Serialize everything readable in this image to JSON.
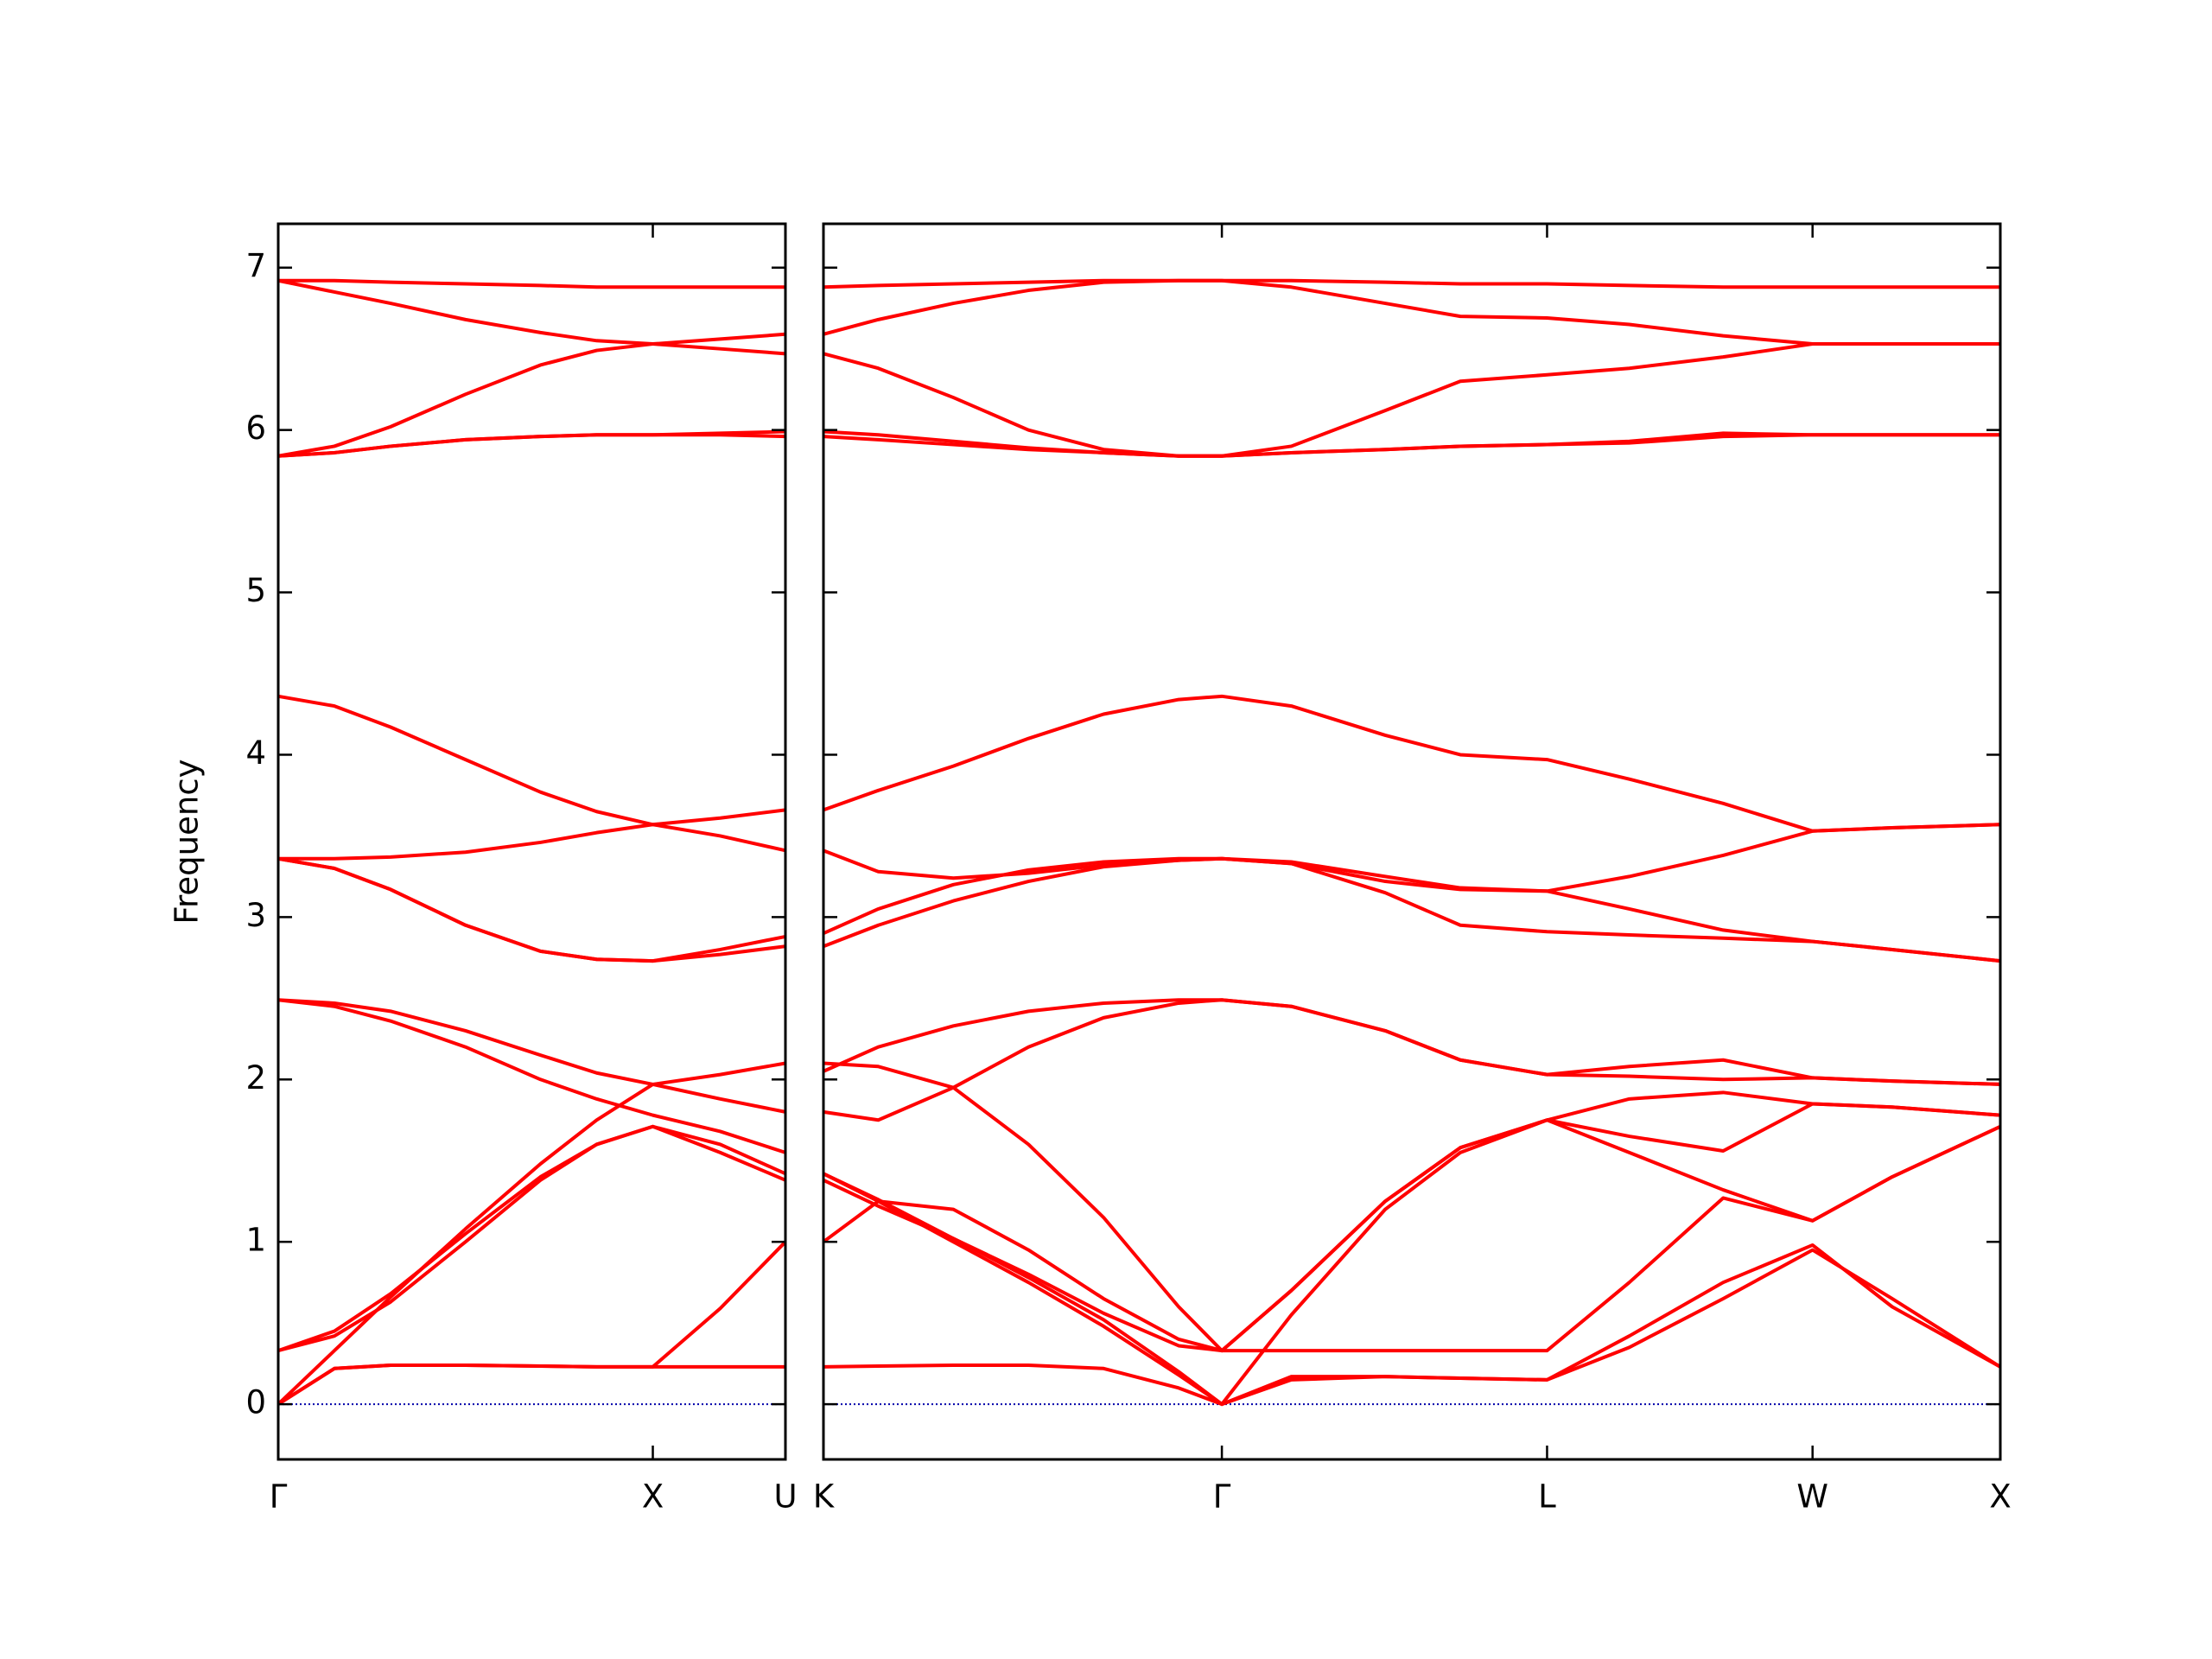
{
  "chart_data": [
    {
      "type": "line",
      "ylabel": "Frequency",
      "color": "#ff0000",
      "show_ytick_labels": true,
      "reference_line": {
        "y": 0,
        "color": "#0000aa",
        "style": "dotted"
      },
      "xlim": [
        0,
        1.354
      ],
      "ylim": [
        -0.34,
        7.27
      ],
      "xticks": [
        {
          "value": 0,
          "label": "Γ"
        },
        {
          "value": 1,
          "label": "X"
        },
        {
          "value": 1.354,
          "label": "U"
        }
      ],
      "yticks": [
        0,
        1,
        2,
        3,
        4,
        5,
        6,
        7
      ],
      "x": [
        0,
        0.15,
        0.3,
        0.5,
        0.7,
        0.85,
        1.0,
        1.18,
        1.354
      ],
      "series": [
        {
          "values": [
            0,
            0.22,
            0.24,
            0.24,
            0.235,
            0.23,
            0.23,
            0.23,
            0.23
          ]
        },
        {
          "values": [
            0,
            0.22,
            0.24,
            0.24,
            0.235,
            0.23,
            0.23,
            0.59,
            1.0
          ]
        },
        {
          "values": [
            0,
            0.33,
            0.66,
            1.08,
            1.48,
            1.75,
            1.97,
            2.03,
            2.1
          ]
        },
        {
          "values": [
            0.33,
            0.45,
            0.68,
            1.05,
            1.4,
            1.6,
            1.71,
            1.55,
            1.38
          ]
        },
        {
          "values": [
            0.33,
            0.42,
            0.63,
            1.0,
            1.38,
            1.6,
            1.71,
            1.6,
            1.42
          ]
        },
        {
          "values": [
            2.49,
            2.47,
            2.42,
            2.3,
            2.15,
            2.04,
            1.97,
            1.88,
            1.8
          ]
        },
        {
          "values": [
            2.49,
            2.45,
            2.36,
            2.2,
            2.0,
            1.88,
            1.78,
            1.68,
            1.55
          ]
        },
        {
          "values": [
            3.36,
            3.36,
            3.37,
            3.4,
            3.46,
            3.52,
            3.57,
            3.61,
            3.66
          ]
        },
        {
          "values": [
            3.36,
            3.3,
            3.17,
            2.95,
            2.79,
            2.74,
            2.73,
            2.77,
            2.82
          ]
        },
        {
          "values": [
            3.36,
            3.3,
            3.17,
            2.95,
            2.79,
            2.74,
            2.73,
            2.8,
            2.88
          ]
        },
        {
          "values": [
            4.36,
            4.3,
            4.17,
            3.97,
            3.77,
            3.65,
            3.57,
            3.5,
            3.41
          ]
        },
        {
          "values": [
            5.84,
            5.86,
            5.9,
            5.94,
            5.96,
            5.97,
            5.97,
            5.97,
            5.96
          ]
        },
        {
          "values": [
            5.84,
            5.86,
            5.9,
            5.94,
            5.96,
            5.97,
            5.97,
            5.98,
            5.99
          ]
        },
        {
          "values": [
            5.84,
            5.9,
            6.02,
            6.22,
            6.4,
            6.49,
            6.53,
            6.56,
            6.59
          ]
        },
        {
          "values": [
            6.92,
            6.85,
            6.78,
            6.68,
            6.6,
            6.55,
            6.53,
            6.5,
            6.47
          ]
        },
        {
          "values": [
            6.92,
            6.92,
            6.91,
            6.9,
            6.89,
            6.88,
            6.88,
            6.88,
            6.88
          ]
        }
      ]
    },
    {
      "type": "line",
      "color": "#ff0000",
      "show_ytick_labels": false,
      "reference_line": {
        "y": 0,
        "color": "#0000aa",
        "style": "dotted"
      },
      "xlim": [
        1.354,
        4.488
      ],
      "ylim": [
        -0.34,
        7.27
      ],
      "xticks": [
        {
          "value": 1.354,
          "label": "K"
        },
        {
          "value": 2.415,
          "label": "Γ"
        },
        {
          "value": 3.281,
          "label": "L"
        },
        {
          "value": 3.988,
          "label": "W"
        },
        {
          "value": 4.488,
          "label": "X"
        }
      ],
      "yticks": [
        0,
        1,
        2,
        3,
        4,
        5,
        6,
        7
      ],
      "x": [
        1.354,
        1.5,
        1.7,
        1.9,
        2.1,
        2.3,
        2.415,
        2.6,
        2.85,
        3.05,
        3.281,
        3.5,
        3.75,
        3.988,
        4.2,
        4.488
      ],
      "series": [
        {
          "values": [
            0.23,
            0.235,
            0.24,
            0.24,
            0.22,
            0.1,
            0,
            0.15,
            0.17,
            0.16,
            0.15,
            0.35,
            0.65,
            0.95,
            0.65,
            0.23
          ]
        },
        {
          "values": [
            1.42,
            1.26,
            1.02,
            0.78,
            0.52,
            0.2,
            0,
            0.17,
            0.17,
            0.16,
            0.15,
            0.42,
            0.75,
            0.98,
            0.6,
            0.23
          ]
        },
        {
          "values": [
            1.42,
            1.25,
            1.0,
            0.75,
            0.48,
            0.18,
            0,
            0.55,
            1.2,
            1.55,
            1.75,
            1.55,
            1.32,
            1.13,
            1.4,
            1.71
          ]
        },
        {
          "values": [
            1.0,
            1.25,
            1.2,
            0.95,
            0.65,
            0.4,
            0.33,
            0.33,
            0.33,
            0.33,
            0.33,
            0.75,
            1.27,
            1.13,
            1.4,
            1.71
          ]
        },
        {
          "values": [
            1.38,
            1.22,
            1.02,
            0.8,
            0.56,
            0.36,
            0.33,
            0.7,
            1.25,
            1.58,
            1.75,
            1.65,
            1.56,
            1.85,
            1.83,
            1.78
          ]
        },
        {
          "values": [
            2.1,
            2.08,
            1.95,
            1.6,
            1.15,
            0.6,
            0.33,
            0.7,
            1.25,
            1.58,
            1.75,
            1.88,
            1.92,
            1.85,
            1.83,
            1.78
          ]
        },
        {
          "values": [
            1.8,
            1.75,
            1.95,
            2.2,
            2.38,
            2.47,
            2.49,
            2.45,
            2.3,
            2.12,
            2.03,
            2.08,
            2.12,
            2.01,
            1.99,
            1.97
          ]
        },
        {
          "values": [
            2.05,
            2.2,
            2.33,
            2.42,
            2.47,
            2.49,
            2.49,
            2.45,
            2.3,
            2.12,
            2.03,
            2.02,
            2.0,
            2.01,
            1.99,
            1.97
          ]
        },
        {
          "values": [
            2.82,
            2.95,
            3.1,
            3.22,
            3.31,
            3.35,
            3.36,
            3.33,
            3.15,
            2.95,
            2.91,
            2.89,
            2.87,
            2.85,
            2.8,
            2.73
          ]
        },
        {
          "values": [
            2.9,
            3.05,
            3.2,
            3.29,
            3.34,
            3.36,
            3.36,
            3.33,
            3.22,
            3.17,
            3.16,
            3.05,
            2.92,
            2.85,
            2.8,
            2.73
          ]
        },
        {
          "values": [
            3.41,
            3.28,
            3.24,
            3.27,
            3.32,
            3.35,
            3.36,
            3.34,
            3.25,
            3.18,
            3.16,
            3.25,
            3.38,
            3.53,
            3.55,
            3.57
          ]
        },
        {
          "values": [
            3.66,
            3.78,
            3.93,
            4.1,
            4.25,
            4.34,
            4.36,
            4.3,
            4.12,
            4.0,
            3.97,
            3.85,
            3.7,
            3.53,
            3.55,
            3.57
          ]
        },
        {
          "values": [
            5.96,
            5.94,
            5.91,
            5.88,
            5.86,
            5.84,
            5.84,
            5.86,
            5.88,
            5.9,
            5.91,
            5.92,
            5.96,
            5.97,
            5.97,
            5.97
          ]
        },
        {
          "values": [
            5.99,
            5.97,
            5.93,
            5.89,
            5.86,
            5.84,
            5.84,
            5.86,
            5.88,
            5.9,
            5.91,
            5.93,
            5.98,
            5.97,
            5.97,
            5.97
          ]
        },
        {
          "values": [
            6.47,
            6.38,
            6.2,
            6.0,
            5.88,
            5.84,
            5.84,
            5.9,
            6.12,
            6.3,
            6.34,
            6.38,
            6.45,
            6.53,
            6.53,
            6.53
          ]
        },
        {
          "values": [
            6.59,
            6.68,
            6.78,
            6.86,
            6.91,
            6.92,
            6.92,
            6.88,
            6.78,
            6.7,
            6.69,
            6.65,
            6.58,
            6.53,
            6.53,
            6.53
          ]
        },
        {
          "values": [
            6.88,
            6.89,
            6.9,
            6.91,
            6.92,
            6.92,
            6.92,
            6.92,
            6.91,
            6.9,
            6.9,
            6.89,
            6.88,
            6.88,
            6.88,
            6.88
          ]
        }
      ]
    }
  ]
}
